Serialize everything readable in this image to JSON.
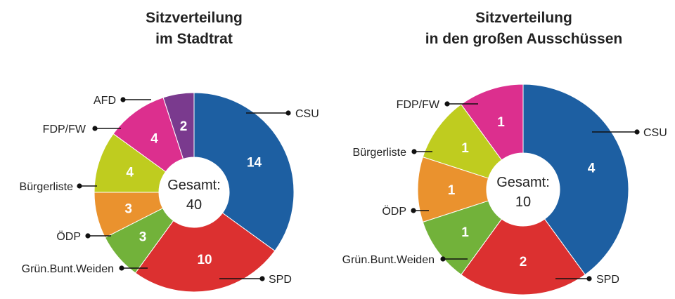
{
  "colors": {
    "CSU": "#1d5fa2",
    "SPD": "#dc3030",
    "Grün.Bunt.Weiden": "#72b23a",
    "ÖDP": "#ea922e",
    "Bürgerliste": "#bfcc1f",
    "FDP/FW": "#dc2f8e",
    "AFD": "#7a3a8e"
  },
  "chart_data": [
    {
      "type": "donut",
      "title": [
        "Sitzverteilung",
        "im Stadtrat"
      ],
      "center_label": [
        "Gesamt:",
        "40"
      ],
      "total": 40,
      "slices": [
        {
          "name": "CSU",
          "value": 14
        },
        {
          "name": "SPD",
          "value": 10
        },
        {
          "name": "Grün.Bunt.Weiden",
          "value": 3
        },
        {
          "name": "ÖDP",
          "value": 3
        },
        {
          "name": "Bürgerliste",
          "value": 4
        },
        {
          "name": "FDP/FW",
          "value": 4
        },
        {
          "name": "AFD",
          "value": 2
        }
      ]
    },
    {
      "type": "donut",
      "title": [
        "Sitzverteilung",
        "in den großen Ausschüssen"
      ],
      "center_label": [
        "Gesamt:",
        "10"
      ],
      "total": 10,
      "slices": [
        {
          "name": "CSU",
          "value": 4
        },
        {
          "name": "SPD",
          "value": 2
        },
        {
          "name": "Grün.Bunt.Weiden",
          "value": 1
        },
        {
          "name": "ÖDP",
          "value": 1
        },
        {
          "name": "Bürgerliste",
          "value": 1
        },
        {
          "name": "FDP/FW",
          "value": 1
        }
      ]
    }
  ]
}
